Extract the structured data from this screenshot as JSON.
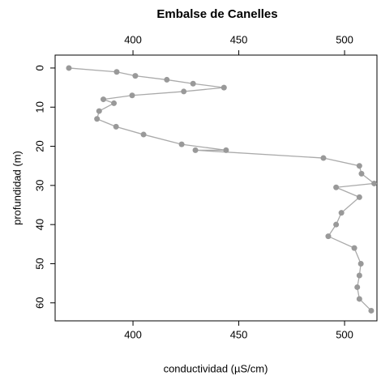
{
  "chart_data": {
    "type": "line",
    "title": "Embalse de Canelles",
    "xlabel": "conductividad (µS/cm)",
    "ylabel": "profundidad (m)",
    "x": [
      369.7,
      392.3,
      401.1,
      416,
      428.4,
      443,
      424,
      399.6,
      386,
      391,
      384,
      383,
      392,
      405,
      423,
      444,
      429.5,
      490,
      507,
      508,
      514,
      496,
      507,
      498.5,
      496,
      492.3,
      504.6,
      507.7,
      507,
      506,
      507,
      512.6
    ],
    "y": [
      0,
      1,
      2,
      3,
      4,
      5,
      6,
      7,
      8,
      9,
      11,
      13,
      15,
      17,
      19.5,
      21,
      21,
      23,
      25,
      27,
      29.5,
      30.5,
      33,
      37,
      40,
      43,
      46,
      50,
      53,
      56,
      59,
      62
    ],
    "color": "#999999",
    "line_color": "#aaaaaa",
    "xlim": [
      363.2,
      515.3
    ],
    "xticks": [
      400,
      450,
      500
    ],
    "ylim": [
      -3.3,
      64.6
    ],
    "yticks": [
      0,
      10,
      20,
      30,
      40,
      50,
      60
    ],
    "y_inverted": true
  }
}
